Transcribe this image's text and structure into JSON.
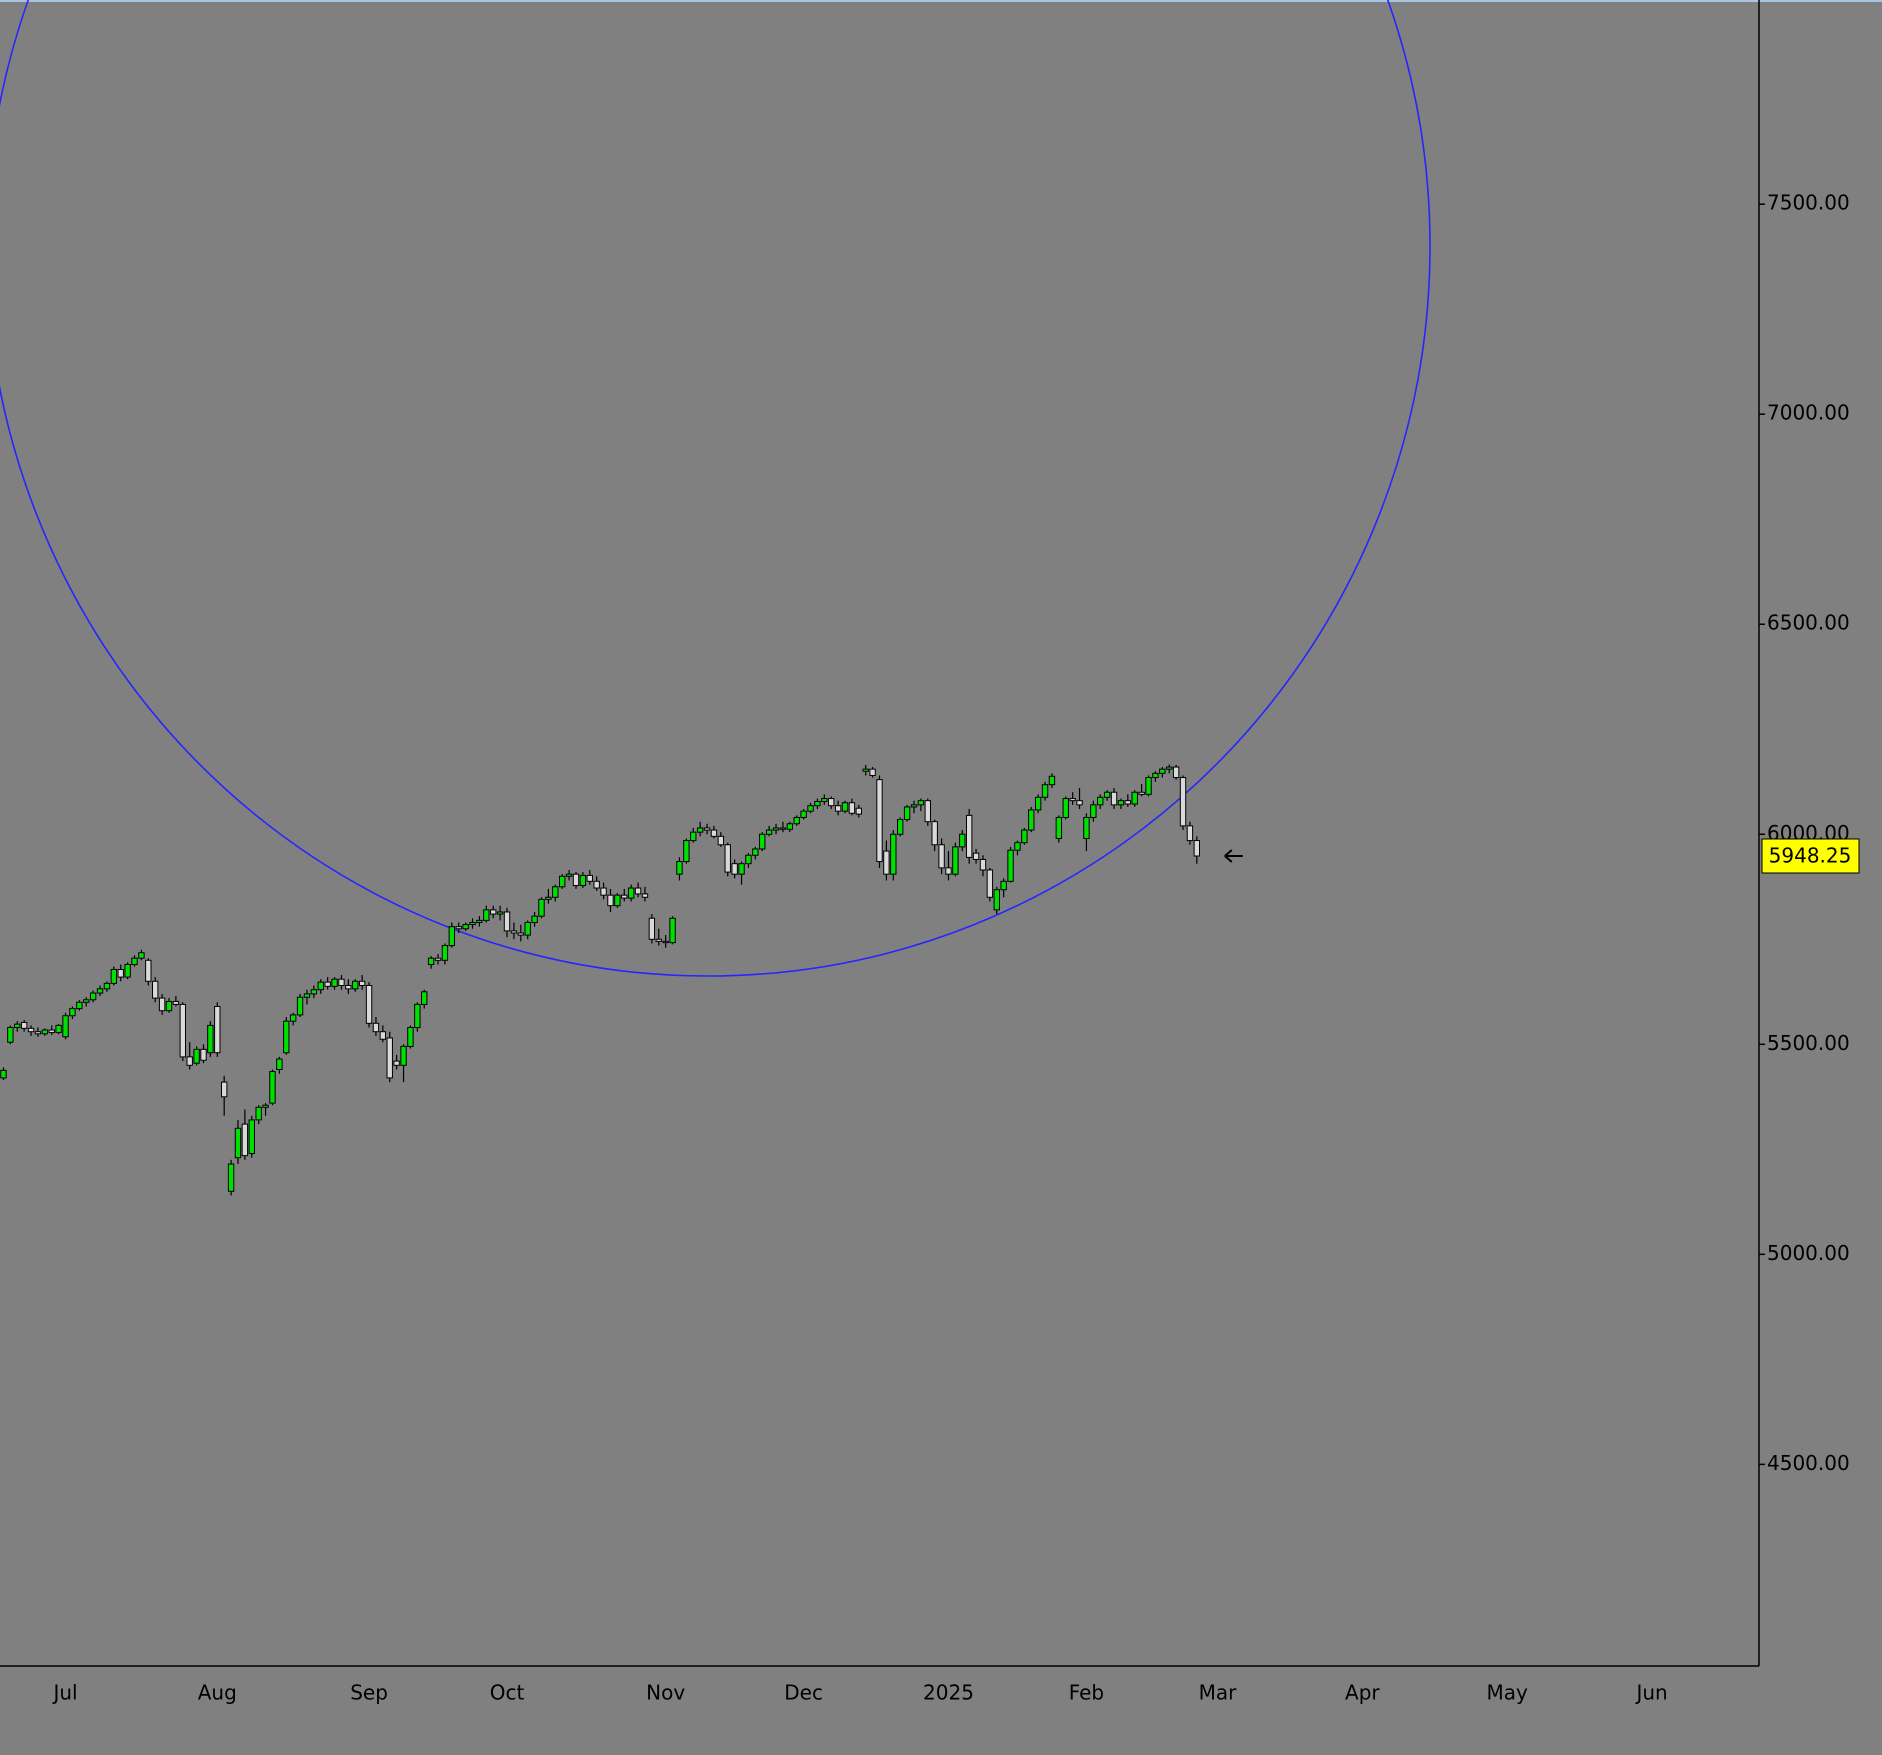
{
  "chart_data": {
    "type": "candlestick",
    "categories": [
      null,
      null,
      null,
      null,
      null,
      null,
      null,
      null,
      null,
      "Jul",
      null,
      null,
      null,
      null,
      null,
      null,
      null,
      null,
      null,
      null,
      null,
      null,
      null,
      null,
      null,
      null,
      null,
      null,
      null,
      null,
      null,
      "Aug",
      null,
      null,
      null,
      null,
      null,
      null,
      null,
      null,
      null,
      null,
      null,
      null,
      null,
      null,
      null,
      null,
      null,
      null,
      null,
      null,
      null,
      "Sep",
      null,
      null,
      null,
      null,
      null,
      null,
      null,
      null,
      null,
      null,
      null,
      null,
      null,
      null,
      null,
      null,
      null,
      null,
      null,
      "Oct",
      null,
      null,
      null,
      null,
      null,
      null,
      null,
      null,
      null,
      null,
      null,
      null,
      null,
      null,
      null,
      null,
      null,
      null,
      null,
      null,
      null,
      null,
      "Nov",
      null,
      null,
      null,
      null,
      null,
      null,
      null,
      null,
      null,
      null,
      null,
      null,
      null,
      null,
      null,
      null,
      null,
      null,
      null,
      "Dec",
      null,
      null,
      null,
      null,
      null,
      null,
      null,
      null,
      null,
      null,
      null,
      null,
      null,
      null,
      null,
      null,
      null,
      null,
      null,
      null,
      "2025",
      null,
      null,
      null,
      null,
      null,
      null,
      null,
      null,
      null,
      null,
      null,
      null,
      null,
      null,
      null,
      null,
      null,
      null,
      null,
      "Feb",
      null,
      null,
      null,
      null,
      null,
      null,
      null,
      null,
      null,
      null,
      null,
      null,
      null,
      null,
      null,
      null,
      null,
      null,
      "Mar",
      null,
      null,
      null,
      null,
      null,
      null,
      null,
      null,
      null,
      null,
      null,
      null,
      null,
      null,
      null,
      null,
      null,
      null,
      null,
      null,
      "Apr",
      null,
      null,
      null,
      null,
      null,
      null,
      null,
      null,
      null,
      null,
      null,
      null,
      null,
      null,
      null,
      null,
      null,
      null,
      null,
      null,
      "May",
      null,
      null,
      null,
      null,
      null,
      null,
      null,
      null,
      null,
      null,
      null,
      null,
      null,
      null,
      null,
      null,
      null,
      null,
      null,
      null,
      "Jun",
      null,
      null,
      null,
      null,
      null,
      null,
      null,
      null,
      null,
      null,
      null,
      null,
      null,
      null,
      null
    ],
    "open": [
      5420,
      5505,
      5540,
      5552,
      5538,
      5530,
      5525,
      5534,
      5528,
      5518,
      5568,
      5585,
      5600,
      5606,
      5622,
      5632,
      5645,
      5678,
      5660,
      5690,
      5705,
      5700,
      5650,
      5610,
      5580,
      5602,
      5595,
      5470,
      5455,
      5488,
      5480,
      5590,
      5410,
      5150,
      5230,
      5310,
      5240,
      5320,
      5350,
      5360,
      5440,
      5480,
      5555,
      5570,
      5612,
      5620,
      5630,
      5648,
      5638,
      5655,
      5640,
      5632,
      5650,
      5640,
      5550,
      5530,
      5515,
      5460,
      5450,
      5495,
      5540,
      5595,
      5690,
      5705,
      5700,
      5735,
      5780,
      5775,
      5785,
      5790,
      5795,
      5820,
      5810,
      5815,
      5770,
      5765,
      5760,
      5790,
      5805,
      5845,
      5850,
      5875,
      5900,
      5905,
      5878,
      5902,
      5888,
      5872,
      5855,
      5830,
      5855,
      5848,
      5872,
      5858,
      5800,
      5750,
      5745,
      5742,
      5905,
      5935,
      5985,
      6005,
      6015,
      6010,
      5995,
      5975,
      5930,
      5905,
      5930,
      5950,
      5965,
      6000,
      6010,
      6015,
      6012,
      6025,
      6040,
      6055,
      6068,
      6078,
      6085,
      6068,
      6055,
      6075,
      6062,
      6150,
      6155,
      6130,
      5960,
      5905,
      6000,
      6035,
      6065,
      6070,
      6080,
      6030,
      5975,
      5920,
      5905,
      5970,
      6045,
      5955,
      5940,
      5915,
      5820,
      5868,
      5888,
      5962,
      5980,
      6010,
      6058,
      6088,
      6118,
      5990,
      6040,
      6085,
      6080,
      5990,
      6040,
      6070,
      6088,
      6100,
      6070,
      6080,
      6072,
      6100,
      6095,
      6135,
      6145,
      6155,
      6160,
      6135,
      6020,
      5985,
      null,
      null,
      null,
      null,
      null,
      null,
      null,
      null,
      null,
      null,
      null,
      null,
      null,
      null,
      null,
      null,
      null,
      null,
      null,
      null,
      null,
      null,
      null,
      null,
      null,
      null,
      null,
      null,
      null,
      null,
      null,
      null,
      null,
      null,
      null,
      null,
      null,
      null,
      null,
      null,
      null,
      null,
      null,
      null,
      null,
      null,
      null,
      null,
      null,
      null,
      null,
      null,
      null,
      null,
      null,
      null,
      null,
      null,
      null,
      null,
      null,
      null,
      null,
      null,
      null,
      null,
      null,
      null,
      null,
      null,
      null,
      null,
      null,
      null,
      null,
      null,
      null,
      null,
      null,
      null,
      null
    ],
    "high": [
      5445,
      5545,
      5555,
      5558,
      5545,
      5540,
      5538,
      5545,
      5548,
      5575,
      5590,
      5605,
      5612,
      5628,
      5640,
      5650,
      5685,
      5690,
      5695,
      5712,
      5725,
      5705,
      5660,
      5620,
      5610,
      5615,
      5600,
      5505,
      5495,
      5500,
      5555,
      5600,
      5425,
      5225,
      5320,
      5345,
      5330,
      5355,
      5360,
      5440,
      5470,
      5565,
      5575,
      5620,
      5630,
      5640,
      5655,
      5660,
      5660,
      5665,
      5655,
      5655,
      5665,
      5648,
      5565,
      5545,
      5530,
      5475,
      5500,
      5545,
      5600,
      5630,
      5710,
      5715,
      5740,
      5790,
      5790,
      5790,
      5800,
      5805,
      5830,
      5830,
      5830,
      5825,
      5790,
      5785,
      5795,
      5815,
      5850,
      5870,
      5880,
      5905,
      5915,
      5910,
      5910,
      5915,
      5900,
      5885,
      5870,
      5860,
      5870,
      5880,
      5885,
      5875,
      5810,
      5775,
      5760,
      5805,
      5945,
      5990,
      6015,
      6030,
      6025,
      6020,
      6005,
      5980,
      5940,
      5935,
      5955,
      5970,
      6005,
      6020,
      6025,
      6030,
      6030,
      6045,
      6060,
      6075,
      6085,
      6095,
      6090,
      6080,
      6080,
      6085,
      6070,
      6165,
      6160,
      6140,
      5985,
      6010,
      6040,
      6070,
      6080,
      6085,
      6085,
      6035,
      5990,
      5960,
      5980,
      6010,
      6060,
      5965,
      5950,
      5920,
      5875,
      5895,
      5970,
      5985,
      6015,
      6065,
      6095,
      6125,
      6145,
      6045,
      6090,
      6100,
      6110,
      6050,
      6080,
      6095,
      6105,
      6110,
      6085,
      6095,
      6105,
      6120,
      6140,
      6150,
      6160,
      6166,
      6165,
      6140,
      6030,
      5995,
      null,
      null,
      null,
      null,
      null,
      null,
      null,
      null,
      null,
      null,
      null,
      null,
      null,
      null,
      null,
      null,
      null,
      null,
      null,
      null,
      null,
      null,
      null,
      null,
      null,
      null,
      null,
      null,
      null,
      null,
      null,
      null,
      null,
      null,
      null,
      null,
      null,
      null,
      null,
      null,
      null,
      null,
      null,
      null,
      null,
      null,
      null,
      null,
      null,
      null,
      null,
      null,
      null,
      null,
      null,
      null,
      null,
      null,
      null,
      null,
      null,
      null,
      null,
      null,
      null,
      null,
      null,
      null,
      null,
      null,
      null,
      null,
      null,
      null,
      null,
      null,
      null,
      null,
      null,
      null,
      null
    ],
    "low": [
      5415,
      5500,
      5530,
      5530,
      5520,
      5518,
      5520,
      5522,
      5524,
      5512,
      5560,
      5580,
      5590,
      5600,
      5615,
      5625,
      5640,
      5650,
      5655,
      5685,
      5700,
      5640,
      5600,
      5570,
      5575,
      5590,
      5460,
      5440,
      5450,
      5455,
      5470,
      5470,
      5330,
      5140,
      5215,
      5225,
      5230,
      5310,
      5330,
      5355,
      5430,
      5475,
      5545,
      5565,
      5595,
      5610,
      5620,
      5630,
      5630,
      5630,
      5620,
      5625,
      5630,
      5540,
      5520,
      5505,
      5410,
      5440,
      5410,
      5490,
      5530,
      5585,
      5680,
      5690,
      5690,
      5730,
      5765,
      5770,
      5775,
      5780,
      5790,
      5800,
      5795,
      5755,
      5750,
      5745,
      5750,
      5780,
      5800,
      5835,
      5840,
      5870,
      5890,
      5870,
      5872,
      5880,
      5865,
      5845,
      5815,
      5825,
      5840,
      5840,
      5850,
      5840,
      5740,
      5735,
      5730,
      5738,
      5890,
      5930,
      5980,
      5995,
      6000,
      5990,
      5970,
      5900,
      5895,
      5880,
      5920,
      5940,
      5960,
      5995,
      6000,
      6005,
      6005,
      6020,
      6035,
      6050,
      6060,
      6070,
      6060,
      6045,
      6050,
      6045,
      6040,
      6140,
      6135,
      5920,
      5890,
      5890,
      5995,
      6030,
      6050,
      6055,
      6020,
      5960,
      5905,
      5890,
      5900,
      5960,
      5930,
      5930,
      5900,
      5840,
      5810,
      5850,
      5885,
      5950,
      5975,
      6005,
      6050,
      6080,
      6110,
      5980,
      6035,
      6070,
      6060,
      5960,
      6030,
      6060,
      6080,
      6060,
      6060,
      6065,
      6065,
      6090,
      6090,
      6125,
      6135,
      6145,
      6130,
      6010,
      5975,
      5930,
      null,
      null,
      null,
      null,
      null,
      null,
      null,
      null,
      null,
      null,
      null,
      null,
      null,
      null,
      null,
      null,
      null,
      null,
      null,
      null,
      null,
      null,
      null,
      null,
      null,
      null,
      null,
      null,
      null,
      null,
      null,
      null,
      null,
      null,
      null,
      null,
      null,
      null,
      null,
      null,
      null,
      null,
      null,
      null,
      null,
      null,
      null,
      null,
      null,
      null,
      null,
      null,
      null,
      null,
      null,
      null,
      null,
      null,
      null,
      null,
      null,
      null,
      null,
      null,
      null,
      null,
      null,
      null,
      null,
      null,
      null,
      null,
      null,
      null,
      null,
      null,
      null,
      null,
      null,
      null,
      null
    ],
    "close": [
      5438,
      5540,
      5548,
      5538,
      5530,
      5525,
      5534,
      5528,
      5545,
      5568,
      5585,
      5600,
      5606,
      5622,
      5632,
      5645,
      5678,
      5660,
      5690,
      5705,
      5718,
      5650,
      5610,
      5580,
      5602,
      5595,
      5470,
      5450,
      5488,
      5462,
      5545,
      5480,
      5375,
      5215,
      5300,
      5235,
      5320,
      5350,
      5355,
      5435,
      5465,
      5555,
      5570,
      5612,
      5620,
      5630,
      5648,
      5638,
      5655,
      5640,
      5632,
      5650,
      5640,
      5550,
      5530,
      5512,
      5420,
      5450,
      5495,
      5540,
      5595,
      5625,
      5705,
      5700,
      5735,
      5780,
      5775,
      5785,
      5790,
      5795,
      5820,
      5810,
      5815,
      5770,
      5765,
      5760,
      5790,
      5805,
      5845,
      5850,
      5875,
      5900,
      5905,
      5878,
      5902,
      5888,
      5872,
      5855,
      5830,
      5855,
      5848,
      5872,
      5858,
      5850,
      5750,
      5745,
      5742,
      5800,
      5935,
      5985,
      6005,
      6015,
      6010,
      5995,
      5975,
      5910,
      5905,
      5930,
      5950,
      5965,
      6000,
      6010,
      6015,
      6012,
      6025,
      6040,
      6055,
      6068,
      6078,
      6085,
      6068,
      6055,
      6075,
      6050,
      6048,
      6155,
      6140,
      5935,
      5905,
      6000,
      6035,
      6065,
      6070,
      6080,
      6030,
      5975,
      5920,
      5905,
      5970,
      6000,
      5945,
      5940,
      5915,
      5850,
      5868,
      5888,
      5962,
      5980,
      6010,
      6058,
      6088,
      6118,
      6138,
      6040,
      6085,
      6080,
      6070,
      6040,
      6070,
      6088,
      6100,
      6070,
      6080,
      6072,
      6100,
      6095,
      6135,
      6145,
      6155,
      6160,
      6135,
      6020,
      5985,
      5948.25,
      null,
      null,
      null,
      null,
      null,
      null,
      null,
      null,
      null,
      null,
      null,
      null,
      null,
      null,
      null,
      null,
      null,
      null,
      null,
      null,
      null,
      null,
      null,
      null,
      null,
      null,
      null,
      null,
      null,
      null,
      null,
      null,
      null,
      null,
      null,
      null,
      null,
      null,
      null,
      null,
      null,
      null,
      null,
      null,
      null,
      null,
      null,
      null,
      null,
      null,
      null,
      null,
      null,
      null,
      null,
      null,
      null,
      null,
      null,
      null,
      null,
      null,
      null,
      null,
      null,
      null,
      null,
      null,
      null,
      null,
      null,
      null,
      null,
      null,
      null,
      null,
      null,
      null,
      null,
      null,
      null
    ],
    "up_color": "#00e000",
    "down_color": "#d9d9d9",
    "ylim": [
      4020,
      7986
    ],
    "yticks": [
      {
        "value": 4500,
        "label": "4500.00"
      },
      {
        "value": 5000,
        "label": "5000.00"
      },
      {
        "value": 5500,
        "label": "5500.00"
      },
      {
        "value": 6000,
        "label": "6000.00"
      },
      {
        "value": 6500,
        "label": "6500.00"
      },
      {
        "value": 7000,
        "label": "7000.00"
      },
      {
        "value": 7500,
        "label": "7500.00"
      }
    ],
    "grid": false,
    "last_price": 5948.25
  }
}
